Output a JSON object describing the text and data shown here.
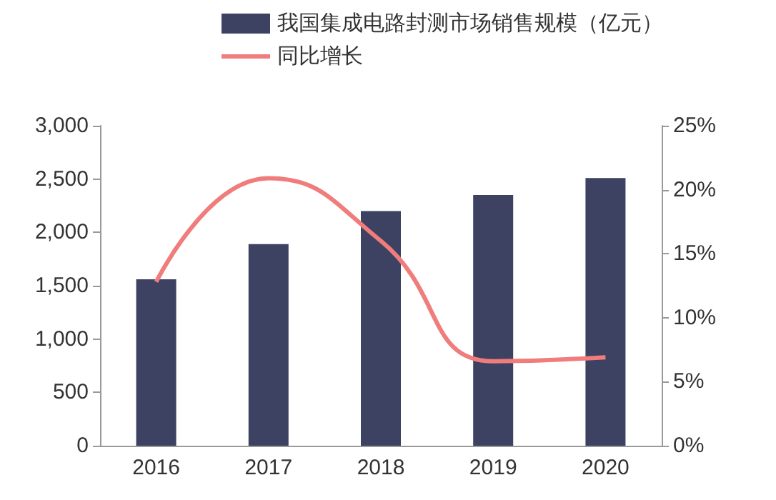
{
  "chart_data": {
    "type": "bar",
    "categories": [
      "2016",
      "2017",
      "2018",
      "2019",
      "2020"
    ],
    "series": [
      {
        "name": "我国集成电路封测市场销售规模（亿元）",
        "color": "#3d4262",
        "values": [
          1560,
          1890,
          2200,
          2350,
          2510
        ]
      },
      {
        "name": "同比增长",
        "type": "line",
        "axis": "y2",
        "color": "#f07c7c",
        "values": [
          12.8,
          20.9,
          16.0,
          6.6,
          6.9
        ]
      }
    ],
    "ylim": [
      0,
      3000
    ],
    "yticks": [
      {
        "value": 0,
        "label": "0"
      },
      {
        "value": 500,
        "label": "500"
      },
      {
        "value": 1000,
        "label": "1,000"
      },
      {
        "value": 1500,
        "label": "1,500"
      },
      {
        "value": 2000,
        "label": "2,000"
      },
      {
        "value": 2500,
        "label": "2,500"
      },
      {
        "value": 3000,
        "label": "3,000"
      }
    ],
    "y2lim": [
      0,
      25
    ],
    "y2ticks": [
      {
        "value": 0,
        "label": "0%"
      },
      {
        "value": 5,
        "label": "5%"
      },
      {
        "value": 10,
        "label": "10%"
      },
      {
        "value": 15,
        "label": "15%"
      },
      {
        "value": 20,
        "label": "20%"
      },
      {
        "value": 25,
        "label": "25%"
      }
    ],
    "legend": "top",
    "grid": false,
    "marker": "none"
  }
}
